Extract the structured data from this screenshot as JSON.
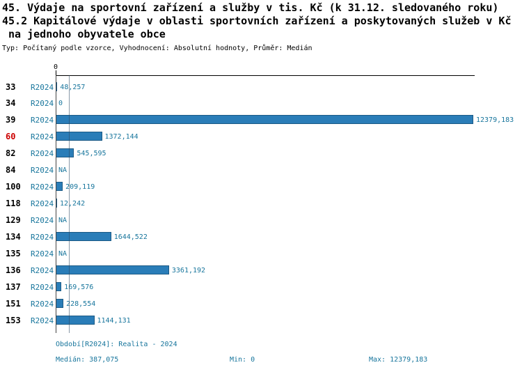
{
  "header": {
    "title_line1": "45. Výdaje na sportovní zařízení a služby v tis. Kč (k 31.12. sledovaného roku)",
    "title_line2": "45.2 Kapitálové výdaje v oblasti sportovních zařízení a poskytovaných služeb v Kč",
    "title_line3": " na jednoho obyvatele obce",
    "subtitle": "Typ: Počítaný podle vzorce, Vyhodnocení: Absolutní hodnoty, Průměr: Medián"
  },
  "chart_data": {
    "type": "bar",
    "orientation": "horizontal",
    "axis_origin_label": "0",
    "period": "R2024",
    "xlim": [
      0,
      12379.183
    ],
    "median_value": 387.075,
    "grid": false,
    "rows": [
      {
        "category": "33",
        "value": 48.257,
        "label": "48,257",
        "highlight": false
      },
      {
        "category": "34",
        "value": 0,
        "label": "0",
        "highlight": false
      },
      {
        "category": "39",
        "value": 12379.183,
        "label": "12379,183",
        "highlight": false
      },
      {
        "category": "60",
        "value": 1372.144,
        "label": "1372,144",
        "highlight": true
      },
      {
        "category": "82",
        "value": 545.595,
        "label": "545,595",
        "highlight": false
      },
      {
        "category": "84",
        "value": null,
        "label": "NA",
        "highlight": false
      },
      {
        "category": "100",
        "value": 209.119,
        "label": "209,119",
        "highlight": false
      },
      {
        "category": "118",
        "value": 12.242,
        "label": "12,242",
        "highlight": false
      },
      {
        "category": "129",
        "value": null,
        "label": "NA",
        "highlight": false
      },
      {
        "category": "134",
        "value": 1644.522,
        "label": "1644,522",
        "highlight": false
      },
      {
        "category": "135",
        "value": null,
        "label": "NA",
        "highlight": false
      },
      {
        "category": "136",
        "value": 3361.192,
        "label": "3361,192",
        "highlight": false
      },
      {
        "category": "137",
        "value": 169.576,
        "label": "169,576",
        "highlight": false
      },
      {
        "category": "151",
        "value": 228.554,
        "label": "228,554",
        "highlight": false
      },
      {
        "category": "153",
        "value": 1144.131,
        "label": "1144,131",
        "highlight": false
      }
    ]
  },
  "footer": {
    "period_line": "Období[R2024]: Realita - 2024",
    "median": "Medián: 387,075",
    "min": "Min: 0",
    "max": "Max: 12379,183"
  },
  "colors": {
    "bar_fill": "#2a7db8",
    "bar_border": "#1b5a85",
    "accent_text": "#17759c",
    "highlight_text": "#cc0000",
    "axis": "#000000"
  }
}
